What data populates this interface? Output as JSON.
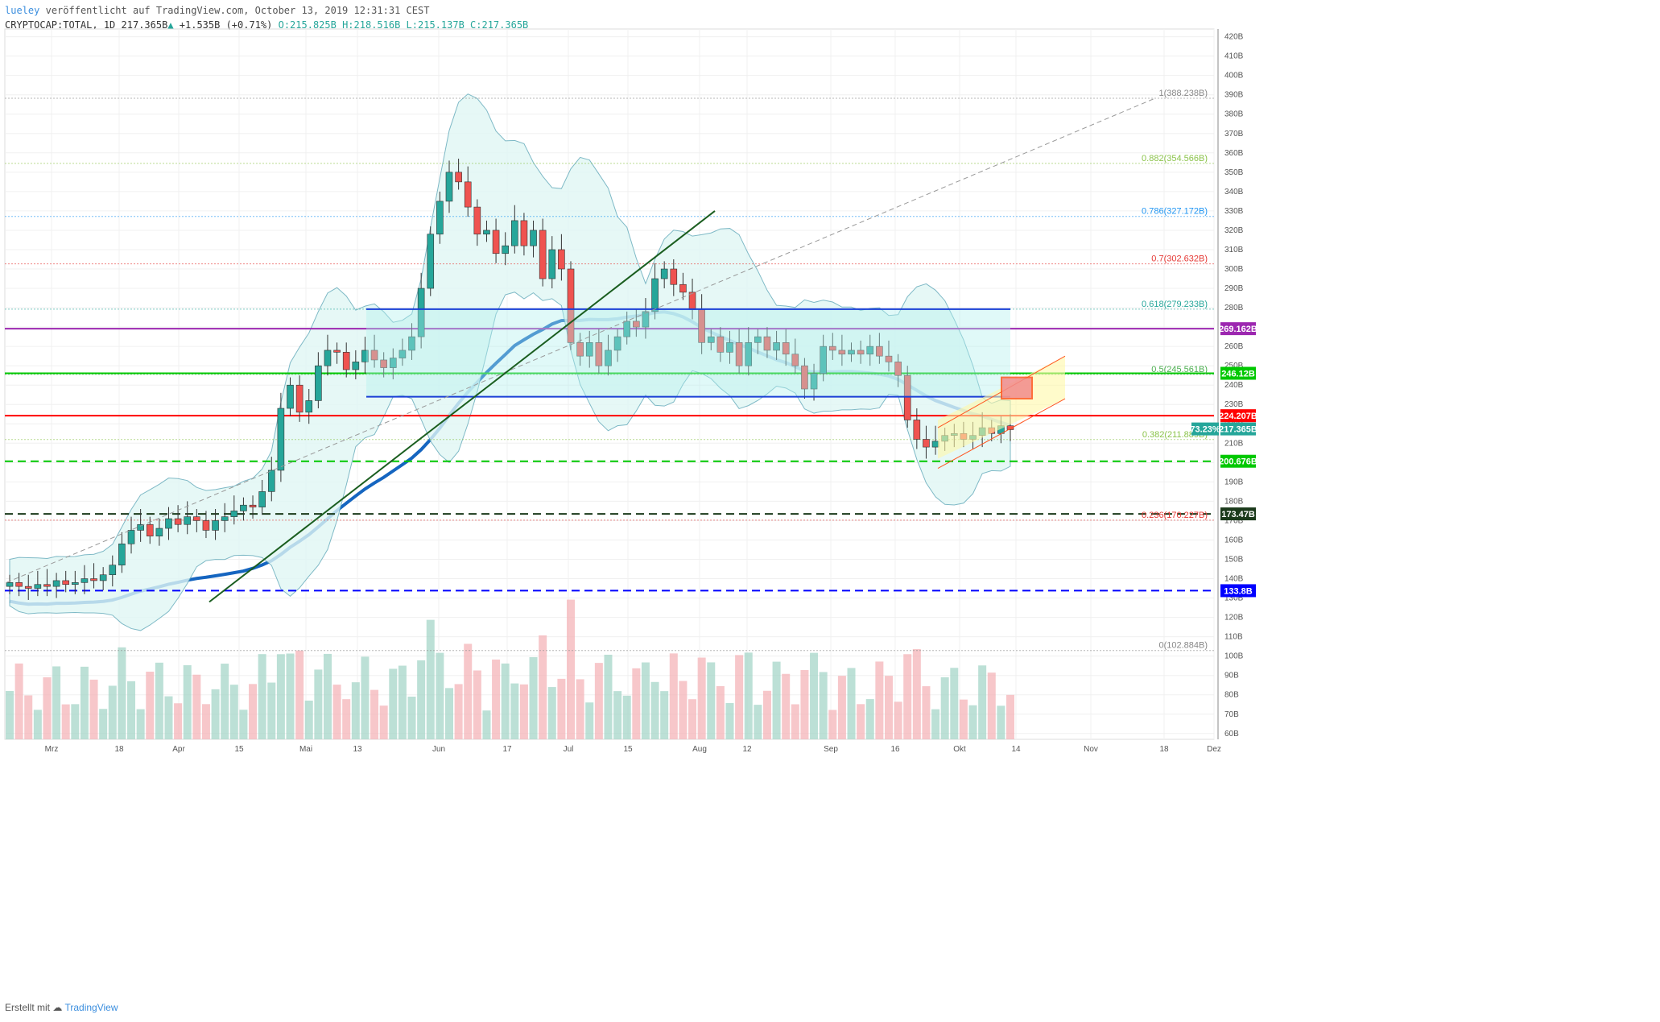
{
  "header": {
    "publisher_line": "veröffentlicht auf TradingView.com, October 13, 2019 12:31:31 CEST",
    "user": "lueley",
    "symbol": "CRYPTOCAP:TOTAL, 1D",
    "last": "217.365B",
    "change_arrow": "▲",
    "change": "+1.535B (+0.71%)",
    "ohlc": "O:215.825B H:218.516B L:215.137B C:217.365B"
  },
  "footer": {
    "created_with": "Erstellt mit",
    "brand": "TradingView"
  },
  "chart_data": {
    "type": "candlestick",
    "title": "CRYPTOCAP:TOTAL, 1D",
    "y_unit": "B",
    "ylim": [
      60,
      420
    ],
    "y_ticks": [
      "420B",
      "410B",
      "400B",
      "390B",
      "380B",
      "370B",
      "360B",
      "350B",
      "340B",
      "330B",
      "320B",
      "310B",
      "300B",
      "290B",
      "280B",
      "270B",
      "260B",
      "250B",
      "240B",
      "230B",
      "220B",
      "210B",
      "200B",
      "190B",
      "180B",
      "170B",
      "160B",
      "150B",
      "140B",
      "130B",
      "120B",
      "110B",
      "100B",
      "90B",
      "80B",
      "70B",
      "60B"
    ],
    "x_ticks": [
      "Mrz",
      "18",
      "Apr",
      "15",
      "Mai",
      "13",
      "Jun",
      "17",
      "Jul",
      "15",
      "Aug",
      "12",
      "Sep",
      "16",
      "Okt",
      "14",
      "Nov",
      "18",
      "Dez"
    ],
    "price_tags": [
      {
        "label": "269.162B",
        "color": "#9c27b0"
      },
      {
        "label": "246.12B",
        "color": "#00c800"
      },
      {
        "label": "224.207B",
        "color": "#ff0000"
      },
      {
        "label": "217.365B",
        "color": "#26a69a"
      },
      {
        "label": "73.23%",
        "color": "#26a69a"
      },
      {
        "label": "200.676B",
        "color": "#00c800"
      },
      {
        "label": "173.47B",
        "color": "#1b3a1b"
      },
      {
        "label": "133.8B",
        "color": "#0000ff"
      }
    ],
    "horizontal_levels": [
      {
        "value": 269.162,
        "color": "#9c27b0",
        "style": "solid"
      },
      {
        "value": 246.12,
        "color": "#00c800",
        "style": "solid"
      },
      {
        "value": 224.207,
        "color": "#ff0000",
        "style": "solid"
      },
      {
        "value": 200.676,
        "color": "#00c800",
        "style": "dashed"
      },
      {
        "value": 173.47,
        "color": "#1b3a1b",
        "style": "dashed"
      },
      {
        "value": 133.8,
        "color": "#0000ff",
        "style": "dashed"
      }
    ],
    "fib_levels": [
      {
        "label": "1(388.238B)",
        "value": 388.238,
        "color": "#888888"
      },
      {
        "label": "0.882(354.566B)",
        "value": 354.566,
        "color": "#8bc34a"
      },
      {
        "label": "0.786(327.172B)",
        "value": 327.172,
        "color": "#2196f3"
      },
      {
        "label": "0.7(302.632B)",
        "value": 302.632,
        "color": "#e53935"
      },
      {
        "label": "0.618(279.233B)",
        "value": 279.233,
        "color": "#26a69a"
      },
      {
        "label": "0.5(245.561B)",
        "value": 245.561,
        "color": "#4caf50"
      },
      {
        "label": "0.382(211.889B)",
        "value": 211.889,
        "color": "#8bc34a"
      },
      {
        "label": "0.236(170.227B)",
        "value": 170.227,
        "color": "#e53935"
      },
      {
        "label": "0(102.884B)",
        "value": 102.884,
        "color": "#888888"
      }
    ],
    "series": [
      {
        "name": "close",
        "values": [
          138,
          136,
          135,
          137,
          136,
          139,
          137,
          138,
          140,
          139,
          142,
          147,
          158,
          165,
          168,
          162,
          166,
          171,
          168,
          172,
          170,
          165,
          170,
          172,
          175,
          178,
          177,
          185,
          196,
          228,
          240,
          226,
          232,
          250,
          258,
          257,
          248,
          252,
          258,
          253,
          249,
          254,
          258,
          265,
          290,
          318,
          335,
          350,
          345,
          332,
          318,
          320,
          308,
          312,
          325,
          312,
          320,
          295,
          310,
          300,
          262,
          255,
          262,
          250,
          258,
          265,
          273,
          270,
          278,
          295,
          300,
          292,
          288,
          279,
          262,
          265,
          257,
          262,
          250,
          262,
          265,
          258,
          262,
          256,
          250,
          238,
          246,
          260,
          258,
          256,
          258,
          256,
          260,
          255,
          252,
          245,
          222,
          212,
          208,
          211,
          214,
          215,
          212,
          214,
          218,
          215,
          219,
          217
        ]
      }
    ]
  }
}
